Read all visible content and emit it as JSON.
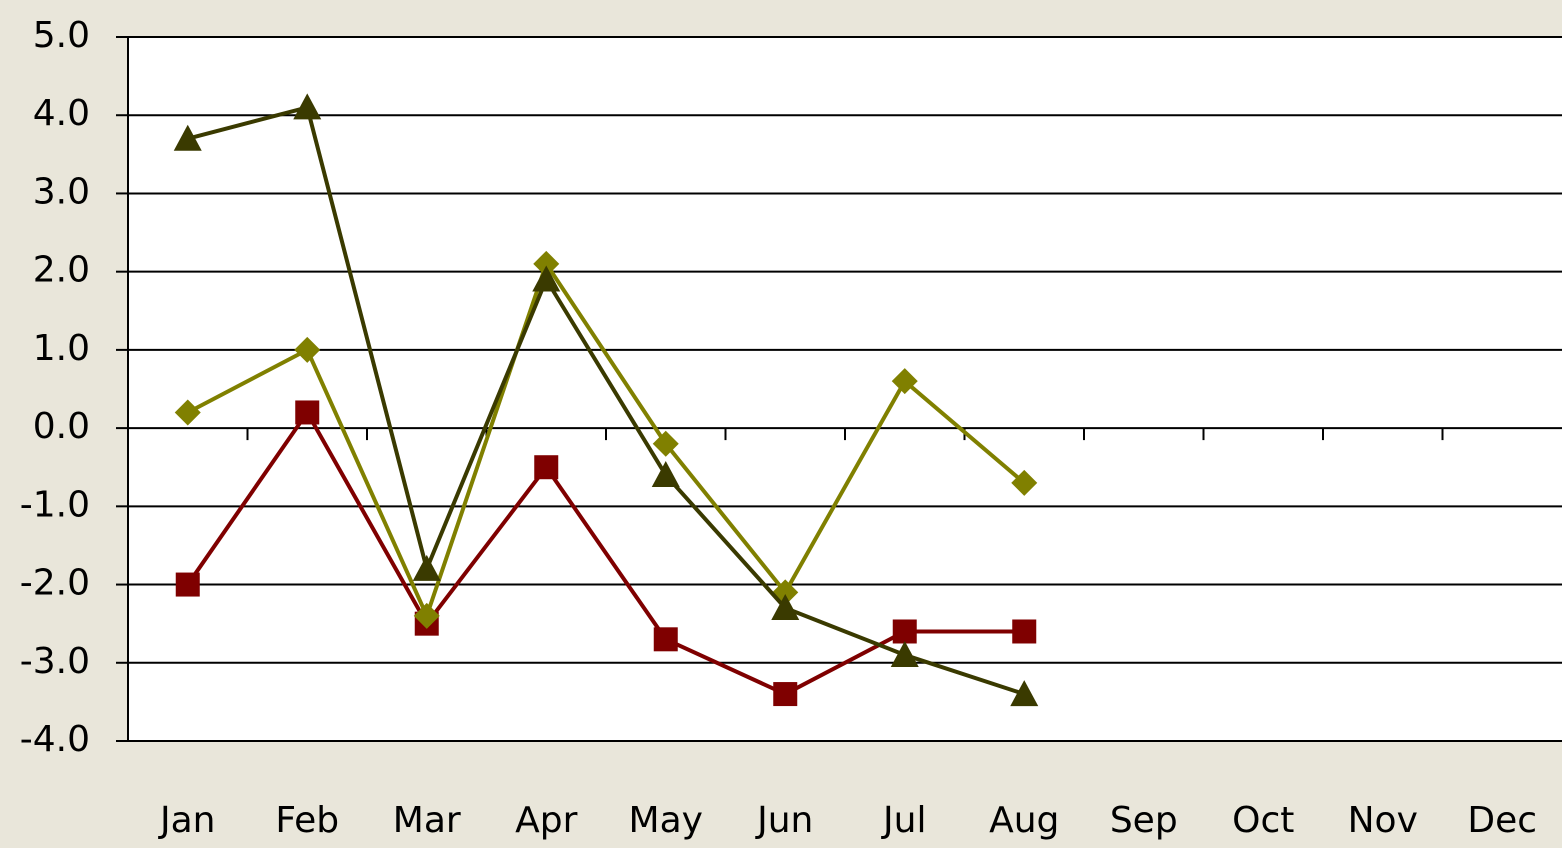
{
  "chart_data": {
    "type": "line",
    "categories": [
      "Jan",
      "Feb",
      "Mar",
      "Apr",
      "May",
      "Jun",
      "Jul",
      "Aug",
      "Sep",
      "Oct",
      "Nov",
      "Dec"
    ],
    "series": [
      {
        "color": "#7f0000",
        "marker": "square",
        "values": [
          -2.0,
          0.2,
          -2.5,
          -0.5,
          -2.7,
          -3.4,
          -2.6,
          -2.6,
          null,
          null,
          null,
          null
        ]
      },
      {
        "color": "#808000",
        "marker": "diamond",
        "values": [
          0.2,
          1.0,
          -2.4,
          2.1,
          -0.2,
          -2.1,
          0.6,
          -0.7,
          null,
          null,
          null,
          null
        ]
      },
      {
        "color": "#3a3a00",
        "marker": "triangle",
        "values": [
          3.7,
          4.1,
          -1.8,
          1.9,
          -0.6,
          -2.3,
          -2.9,
          -3.4,
          null,
          null,
          null,
          null
        ]
      }
    ],
    "ylim": [
      -4,
      5
    ],
    "yticks": [
      {
        "value": -4,
        "label": "-4.0"
      },
      {
        "value": -3,
        "label": "-3.0"
      },
      {
        "value": -2,
        "label": "-2.0"
      },
      {
        "value": -1,
        "label": "-1.0"
      },
      {
        "value": 0,
        "label": "0.0"
      },
      {
        "value": 1,
        "label": "1.0"
      },
      {
        "value": 2,
        "label": "2.0"
      },
      {
        "value": 3,
        "label": "3.0"
      },
      {
        "value": 4,
        "label": "4.0"
      },
      {
        "value": 5,
        "label": "5.0"
      }
    ],
    "grid": true
  }
}
